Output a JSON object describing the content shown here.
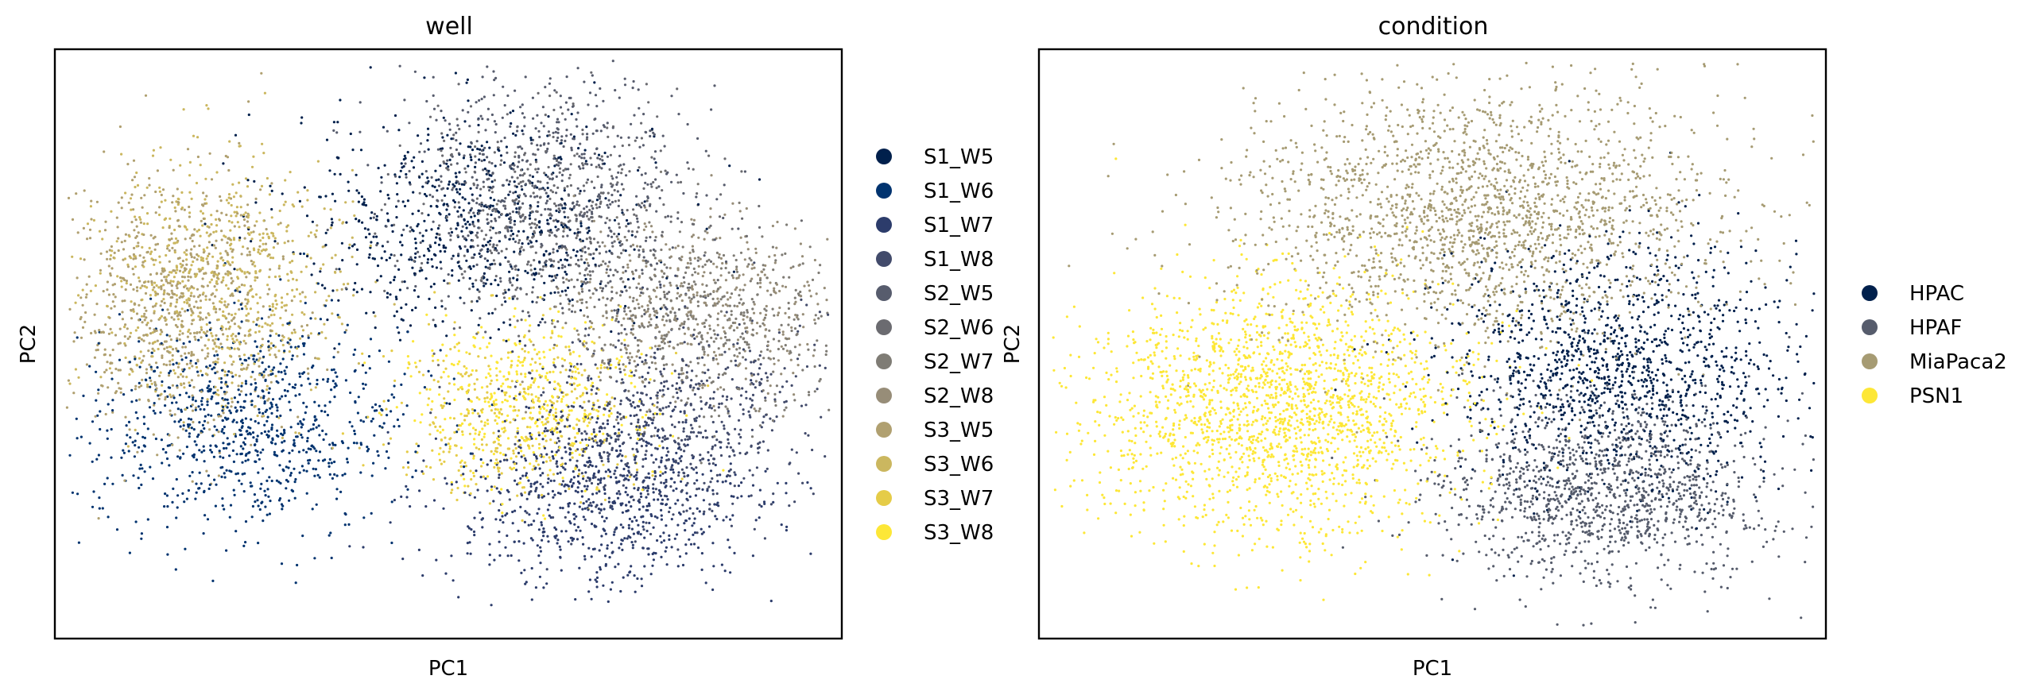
{
  "chart_data": [
    {
      "type": "scatter",
      "title": "well",
      "xlabel": "PC1",
      "ylabel": "PC2",
      "ticks_shown": false,
      "grid": false,
      "legend_placement": "right outside",
      "xlim": [
        -10,
        10
      ],
      "ylim": [
        -8,
        8
      ],
      "series": [
        {
          "name": "S1_W5",
          "color": "#00204c",
          "points": 700,
          "cluster": {
            "x": 0.5,
            "y": 3.3,
            "sx": 2.3,
            "sy": 1.5
          }
        },
        {
          "name": "S1_W6",
          "color": "#00336f",
          "points": 900,
          "cluster": {
            "x": -5.0,
            "y": -2.2,
            "sx": 2.0,
            "sy": 1.4
          }
        },
        {
          "name": "S1_W7",
          "color": "#2c3c6b",
          "points": 800,
          "cluster": {
            "x": 3.9,
            "y": -4.3,
            "sx": 2.0,
            "sy": 1.2
          }
        },
        {
          "name": "S1_W8",
          "color": "#424b6b",
          "points": 700,
          "cluster": {
            "x": 5.5,
            "y": -2.0,
            "sx": 1.8,
            "sy": 1.4
          }
        },
        {
          "name": "S2_W5",
          "color": "#575c6d",
          "points": 650,
          "cluster": {
            "x": 2.5,
            "y": 4.5,
            "sx": 1.9,
            "sy": 1.5
          }
        },
        {
          "name": "S2_W6",
          "color": "#6b6b70",
          "points": 550,
          "cluster": {
            "x": 2.8,
            "y": 3.2,
            "sx": 2.0,
            "sy": 1.4
          }
        },
        {
          "name": "S2_W7",
          "color": "#7f7c75",
          "points": 500,
          "cluster": {
            "x": 6.6,
            "y": 0.6,
            "sx": 1.8,
            "sy": 1.3
          }
        },
        {
          "name": "S2_W8",
          "color": "#978d78",
          "points": 450,
          "cluster": {
            "x": 6.4,
            "y": 1.0,
            "sx": 1.7,
            "sy": 1.2
          }
        },
        {
          "name": "S3_W5",
          "color": "#b0a070",
          "points": 800,
          "cluster": {
            "x": -7.0,
            "y": 1.0,
            "sx": 1.5,
            "sy": 1.8
          }
        },
        {
          "name": "S3_W6",
          "color": "#cbb75f",
          "points": 700,
          "cluster": {
            "x": -5.8,
            "y": 1.6,
            "sx": 1.6,
            "sy": 1.6
          }
        },
        {
          "name": "S3_W7",
          "color": "#e5cc48",
          "points": 400,
          "cluster": {
            "x": 1.6,
            "y": -1.9,
            "sx": 1.6,
            "sy": 1.1
          }
        },
        {
          "name": "S3_W8",
          "color": "#fde737",
          "points": 400,
          "cluster": {
            "x": 2.0,
            "y": -1.5,
            "sx": 1.5,
            "sy": 1.1
          }
        }
      ]
    },
    {
      "type": "scatter",
      "title": "condition",
      "xlabel": "PC1",
      "ylabel": "PC2",
      "ticks_shown": false,
      "grid": false,
      "legend_placement": "right outside",
      "xlim": [
        -10,
        10
      ],
      "ylim": [
        -8,
        8
      ],
      "series": [
        {
          "name": "HPAC",
          "color": "#00204c",
          "points": 1300,
          "cluster": {
            "x": 4.8,
            "y": -0.6,
            "sx": 2.2,
            "sy": 1.6
          }
        },
        {
          "name": "HPAF",
          "color": "#565c6c",
          "points": 1300,
          "cluster": {
            "x": 4.4,
            "y": -4.0,
            "sx": 2.1,
            "sy": 1.3
          }
        },
        {
          "name": "MiaPaca2",
          "color": "#a69b73",
          "points": 2000,
          "cluster": {
            "x": 1.2,
            "y": 3.6,
            "sx": 3.0,
            "sy": 1.7
          }
        },
        {
          "name": "PSN1",
          "color": "#fde737",
          "points": 2000,
          "cluster": {
            "x": -3.9,
            "y": -1.7,
            "sx": 2.3,
            "sy": 1.7
          }
        }
      ]
    }
  ]
}
